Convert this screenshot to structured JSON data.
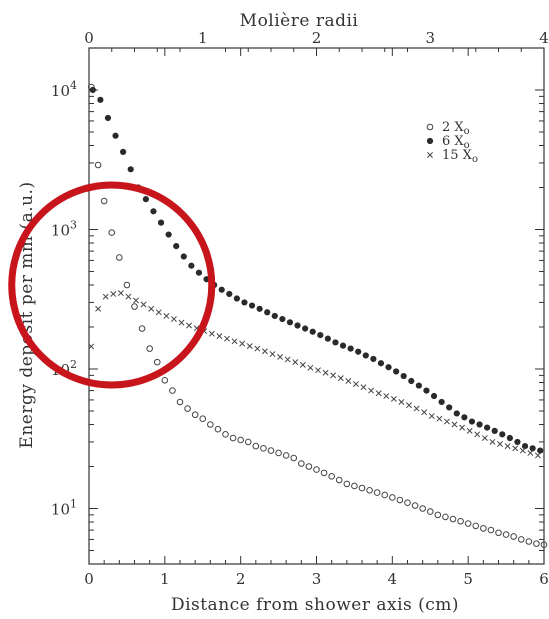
{
  "chart_data": {
    "type": "scatter",
    "xlabel": "Distance from shower axis (cm)",
    "x2label": "Molière radii",
    "ylabel": "Energy deposit per mm (a.u.)",
    "xlim": [
      0,
      6
    ],
    "x2lim": [
      0,
      4
    ],
    "ylim": [
      4,
      20000
    ],
    "yscale": "log",
    "x_ticks": [
      "0",
      "1",
      "2",
      "3",
      "4",
      "5",
      "6"
    ],
    "x2_ticks": [
      "0",
      "1",
      "2",
      "3",
      "4"
    ],
    "y_ticks": [
      {
        "value": 10,
        "base": "10",
        "exp": "1"
      },
      {
        "value": 100,
        "base": "10",
        "exp": "2"
      },
      {
        "value": 1000,
        "base": "10",
        "exp": "3"
      },
      {
        "value": 10000,
        "base": "10",
        "exp": "4"
      }
    ],
    "legend_position": "top-right",
    "series": [
      {
        "name": "2 X",
        "name_sub": "o",
        "marker": "open-circle",
        "points": [
          [
            0.03,
            10500
          ],
          [
            0.12,
            2900
          ],
          [
            0.2,
            1600
          ],
          [
            0.3,
            950
          ],
          [
            0.4,
            630
          ],
          [
            0.5,
            400
          ],
          [
            0.6,
            280
          ],
          [
            0.7,
            195
          ],
          [
            0.8,
            140
          ],
          [
            0.9,
            112
          ],
          [
            1.0,
            83
          ],
          [
            1.1,
            70
          ],
          [
            1.2,
            58
          ],
          [
            1.3,
            52
          ],
          [
            1.4,
            47
          ],
          [
            1.5,
            44
          ],
          [
            1.6,
            40
          ],
          [
            1.7,
            37
          ],
          [
            1.8,
            34
          ],
          [
            1.9,
            32
          ],
          [
            2.0,
            31
          ],
          [
            2.1,
            30
          ],
          [
            2.2,
            28
          ],
          [
            2.3,
            27
          ],
          [
            2.4,
            26
          ],
          [
            2.5,
            25
          ],
          [
            2.6,
            24
          ],
          [
            2.7,
            23
          ],
          [
            2.8,
            21
          ],
          [
            2.9,
            20
          ],
          [
            3.0,
            19
          ],
          [
            3.1,
            18
          ],
          [
            3.2,
            17
          ],
          [
            3.3,
            16
          ],
          [
            3.4,
            15
          ],
          [
            3.5,
            14.5
          ],
          [
            3.6,
            14
          ],
          [
            3.7,
            13.5
          ],
          [
            3.8,
            13
          ],
          [
            3.9,
            12.5
          ],
          [
            4.0,
            12
          ],
          [
            4.1,
            11.5
          ],
          [
            4.2,
            11
          ],
          [
            4.3,
            10.5
          ],
          [
            4.4,
            10
          ],
          [
            4.5,
            9.5
          ],
          [
            4.6,
            9
          ],
          [
            4.7,
            8.7
          ],
          [
            4.8,
            8.4
          ],
          [
            4.9,
            8.1
          ],
          [
            5.0,
            7.8
          ],
          [
            5.1,
            7.5
          ],
          [
            5.2,
            7.2
          ],
          [
            5.3,
            7
          ],
          [
            5.4,
            6.7
          ],
          [
            5.5,
            6.5
          ],
          [
            5.6,
            6.3
          ],
          [
            5.7,
            6
          ],
          [
            5.8,
            5.8
          ],
          [
            5.9,
            5.6
          ],
          [
            6.0,
            5.5
          ]
        ]
      },
      {
        "name": "6 X",
        "name_sub": "o",
        "marker": "filled-circle",
        "points": [
          [
            0.05,
            10000
          ],
          [
            0.15,
            8500
          ],
          [
            0.25,
            6300
          ],
          [
            0.35,
            4700
          ],
          [
            0.45,
            3600
          ],
          [
            0.55,
            2700
          ],
          [
            0.65,
            2000
          ],
          [
            0.75,
            1650
          ],
          [
            0.85,
            1350
          ],
          [
            0.95,
            1120
          ],
          [
            1.05,
            920
          ],
          [
            1.15,
            760
          ],
          [
            1.25,
            640
          ],
          [
            1.35,
            550
          ],
          [
            1.45,
            490
          ],
          [
            1.55,
            440
          ],
          [
            1.65,
            400
          ],
          [
            1.75,
            370
          ],
          [
            1.85,
            345
          ],
          [
            1.95,
            320
          ],
          [
            2.05,
            300
          ],
          [
            2.15,
            285
          ],
          [
            2.25,
            270
          ],
          [
            2.35,
            255
          ],
          [
            2.45,
            240
          ],
          [
            2.55,
            228
          ],
          [
            2.65,
            216
          ],
          [
            2.75,
            205
          ],
          [
            2.85,
            195
          ],
          [
            2.95,
            185
          ],
          [
            3.05,
            175
          ],
          [
            3.15,
            165
          ],
          [
            3.25,
            155
          ],
          [
            3.35,
            147
          ],
          [
            3.45,
            140
          ],
          [
            3.55,
            133
          ],
          [
            3.65,
            125
          ],
          [
            3.75,
            118
          ],
          [
            3.85,
            110
          ],
          [
            3.95,
            103
          ],
          [
            4.05,
            96
          ],
          [
            4.15,
            89
          ],
          [
            4.25,
            82
          ],
          [
            4.35,
            76
          ],
          [
            4.45,
            70
          ],
          [
            4.55,
            64
          ],
          [
            4.65,
            58
          ],
          [
            4.75,
            53
          ],
          [
            4.85,
            48
          ],
          [
            4.95,
            45
          ],
          [
            5.05,
            42
          ],
          [
            5.15,
            40
          ],
          [
            5.25,
            38
          ],
          [
            5.35,
            36
          ],
          [
            5.45,
            34
          ],
          [
            5.55,
            32
          ],
          [
            5.65,
            30
          ],
          [
            5.75,
            28
          ],
          [
            5.85,
            27
          ],
          [
            5.95,
            26
          ]
        ]
      },
      {
        "name": "15 X",
        "name_sub": "o",
        "marker": "cross",
        "points": [
          [
            0.03,
            145
          ],
          [
            0.12,
            270
          ],
          [
            0.22,
            330
          ],
          [
            0.32,
            345
          ],
          [
            0.42,
            350
          ],
          [
            0.52,
            330
          ],
          [
            0.62,
            310
          ],
          [
            0.72,
            290
          ],
          [
            0.82,
            270
          ],
          [
            0.92,
            255
          ],
          [
            1.02,
            240
          ],
          [
            1.12,
            228
          ],
          [
            1.22,
            215
          ],
          [
            1.32,
            205
          ],
          [
            1.42,
            196
          ],
          [
            1.52,
            187
          ],
          [
            1.62,
            179
          ],
          [
            1.72,
            172
          ],
          [
            1.82,
            165
          ],
          [
            1.92,
            158
          ],
          [
            2.02,
            152
          ],
          [
            2.12,
            146
          ],
          [
            2.22,
            140
          ],
          [
            2.32,
            134
          ],
          [
            2.42,
            128
          ],
          [
            2.52,
            122
          ],
          [
            2.62,
            117
          ],
          [
            2.72,
            112
          ],
          [
            2.82,
            107
          ],
          [
            2.92,
            102
          ],
          [
            3.02,
            98
          ],
          [
            3.12,
            94
          ],
          [
            3.22,
            90
          ],
          [
            3.32,
            86
          ],
          [
            3.42,
            82
          ],
          [
            3.52,
            78
          ],
          [
            3.62,
            74
          ],
          [
            3.72,
            70
          ],
          [
            3.82,
            67
          ],
          [
            3.92,
            64
          ],
          [
            4.02,
            61
          ],
          [
            4.12,
            58
          ],
          [
            4.22,
            55
          ],
          [
            4.32,
            52
          ],
          [
            4.42,
            49
          ],
          [
            4.52,
            46
          ],
          [
            4.62,
            44
          ],
          [
            4.72,
            42
          ],
          [
            4.82,
            40
          ],
          [
            4.92,
            38
          ],
          [
            5.02,
            36
          ],
          [
            5.12,
            34
          ],
          [
            5.22,
            32
          ],
          [
            5.32,
            30
          ],
          [
            5.42,
            29
          ],
          [
            5.52,
            28
          ],
          [
            5.62,
            27
          ],
          [
            5.72,
            26
          ],
          [
            5.82,
            25
          ],
          [
            5.92,
            24
          ]
        ]
      }
    ]
  },
  "annotation": {
    "shape": "circle",
    "color": "#c8141b",
    "center_x": 0.3,
    "center_y": 400
  },
  "colors": {
    "axis": "#333333",
    "marker": "#444444",
    "highlight": "#c8141b"
  }
}
